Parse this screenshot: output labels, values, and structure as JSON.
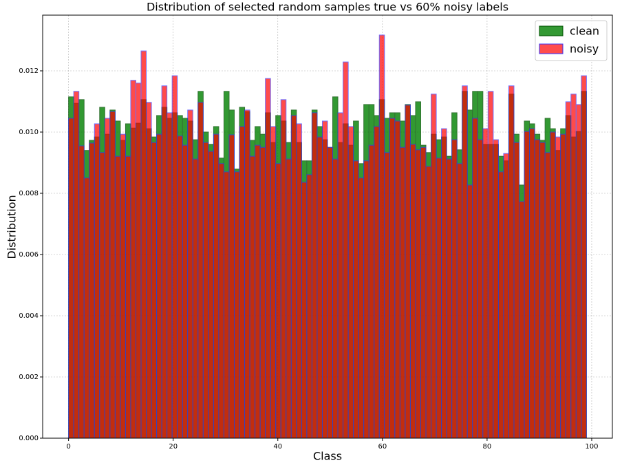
{
  "chart_data": {
    "type": "histogram",
    "title": "Distribution of selected random samples true vs 60% noisy labels",
    "xlabel": "Class",
    "ylabel": "Distribution",
    "bins": [
      0,
      0.99,
      1.98,
      2.97,
      3.96,
      4.95,
      5.94,
      6.93,
      7.92,
      8.91,
      9.9,
      10.89,
      11.88,
      12.87,
      13.86,
      14.85,
      15.84,
      16.83,
      17.82,
      18.81,
      19.8,
      20.79,
      21.78,
      22.77,
      23.76,
      24.75,
      25.74,
      26.73,
      27.72,
      28.71,
      29.7,
      30.69,
      31.68,
      32.67,
      33.66,
      34.65,
      35.64,
      36.63,
      37.62,
      38.61,
      39.6,
      40.59,
      41.58,
      42.57,
      43.56,
      44.55,
      45.54,
      46.53,
      47.52,
      48.51,
      49.5,
      50.49,
      51.48,
      52.47,
      53.46,
      54.45,
      55.44,
      56.43,
      57.42,
      58.41,
      59.4,
      60.39,
      61.38,
      62.37,
      63.36,
      64.35,
      65.34,
      66.33,
      67.32,
      68.31,
      69.3,
      70.29,
      71.28,
      72.27,
      73.26,
      74.25,
      75.24,
      76.23,
      77.22,
      78.21,
      79.2,
      80.19,
      81.18,
      82.17,
      83.16,
      84.15,
      85.14,
      86.13,
      87.12,
      88.11,
      89.1,
      90.09,
      91.08,
      92.07,
      93.06,
      94.05,
      95.04,
      96.03,
      97.02,
      98.01,
      99
    ],
    "series": [
      {
        "name": "clean",
        "color": "#008000",
        "edgecolor": "#005000",
        "opacity": 0.8,
        "values": [
          0.01115,
          0.01094,
          0.01106,
          0.0094,
          0.00973,
          0.00984,
          0.01081,
          0.00993,
          0.01072,
          0.01036,
          0.00973,
          0.01027,
          0.01013,
          0.01029,
          0.01106,
          0.01011,
          0.00984,
          0.01054,
          0.01081,
          0.01045,
          0.01063,
          0.01054,
          0.01045,
          0.01036,
          0.00975,
          0.01133,
          0.01,
          0.0096,
          0.01018,
          0.00915,
          0.01133,
          0.01072,
          0.00879,
          0.01081,
          0.01067,
          0.00973,
          0.01018,
          0.00993,
          0.01063,
          0.00966,
          0.01054,
          0.01036,
          0.00966,
          0.01072,
          0.00966,
          0.00906,
          0.00906,
          0.01072,
          0.01018,
          0.00975,
          0.0095,
          0.01115,
          0.00966,
          0.01027,
          0.00957,
          0.01036,
          0.00897,
          0.0109,
          0.0109,
          0.01054,
          0.01106,
          0.01045,
          0.01063,
          0.01063,
          0.01036,
          0.0109,
          0.01054,
          0.01099,
          0.00957,
          0.00933,
          0.00993,
          0.00975,
          0.00984,
          0.00921,
          0.01063,
          0.00942,
          0.01133,
          0.01072,
          0.01133,
          0.01133,
          0.0096,
          0.0096,
          0.0096,
          0.00921,
          0.00906,
          0.01124,
          0.00993,
          0.00827,
          0.01036,
          0.01027,
          0.00993,
          0.00973,
          0.01045,
          0.01011,
          0.0094,
          0.01011,
          0.01054,
          0.00984,
          0.01002,
          0.01133
        ]
      },
      {
        "name": "noisy",
        "color": "#ff0000",
        "edgecolor": "#3030ff",
        "opacity": 0.7,
        "values": [
          0.01045,
          0.01133,
          0.00955,
          0.0085,
          0.00964,
          0.01027,
          0.00933,
          0.01045,
          0.01067,
          0.00921,
          0.00993,
          0.00921,
          0.01169,
          0.0116,
          0.01265,
          0.01097,
          0.00966,
          0.00993,
          0.01151,
          0.01063,
          0.01184,
          0.00987,
          0.00957,
          0.01072,
          0.00912,
          0.01097,
          0.00966,
          0.00937,
          0.00993,
          0.00897,
          0.0087,
          0.00991,
          0.0087,
          0.01018,
          0.01072,
          0.00921,
          0.00957,
          0.0095,
          0.01175,
          0.01018,
          0.00897,
          0.01106,
          0.00912,
          0.01054,
          0.01027,
          0.00836,
          0.00861,
          0.01063,
          0.00984,
          0.01036,
          0.0095,
          0.00912,
          0.01063,
          0.01229,
          0.01018,
          0.00906,
          0.0085,
          0.00906,
          0.00957,
          0.01018,
          0.01317,
          0.00933,
          0.01045,
          0.01036,
          0.0095,
          0.01088,
          0.0096,
          0.00942,
          0.0095,
          0.00888,
          0.01124,
          0.00915,
          0.01011,
          0.00912,
          0.00975,
          0.00897,
          0.01151,
          0.00827,
          0.01045,
          0.00975,
          0.01011,
          0.01133,
          0.00975,
          0.0087,
          0.0093,
          0.01151,
          0.00966,
          0.00773,
          0.01002,
          0.01011,
          0.00975,
          0.00966,
          0.00933,
          0.01,
          0.00984,
          0.00993,
          0.01099,
          0.01124,
          0.0109,
          0.01184
        ]
      }
    ],
    "xlim": [
      -4.95,
      103.95
    ],
    "ylim": [
      0,
      0.01382
    ],
    "xticks": [
      0,
      20,
      40,
      60,
      80,
      100
    ],
    "yticks": [
      {
        "value": 0,
        "label": "0.000"
      },
      {
        "value": 0.002,
        "label": "0.002"
      },
      {
        "value": 0.004,
        "label": "0.004"
      },
      {
        "value": 0.006,
        "label": "0.006"
      },
      {
        "value": 0.008,
        "label": "0.008"
      },
      {
        "value": 0.01,
        "label": "0.010"
      },
      {
        "value": 0.012,
        "label": "0.012"
      }
    ],
    "grid": true,
    "legend": "upper right"
  }
}
